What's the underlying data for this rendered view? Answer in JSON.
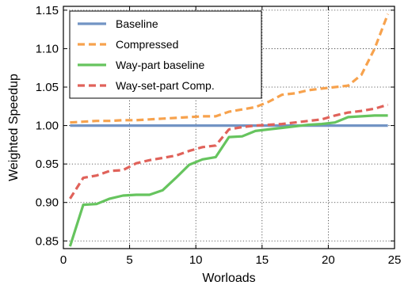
{
  "chart_data": {
    "type": "line",
    "xlabel": "Worloads",
    "ylabel": "Weighted Speedup",
    "xlim": [
      0,
      25
    ],
    "ylim": [
      0.84,
      1.155
    ],
    "xticks": [
      "0",
      "5",
      "10",
      "15",
      "20",
      "25"
    ],
    "yticks": [
      "0.85",
      "0.90",
      "0.95",
      "1.00",
      "1.05",
      "1.10",
      "1.15"
    ],
    "grid": true,
    "legend_position": "top-left",
    "series": [
      {
        "name": "Baseline",
        "color": "#7294c4",
        "style": "solid",
        "x": [
          0.5,
          24.5
        ],
        "y": [
          1.0,
          1.0
        ]
      },
      {
        "name": "Compressed",
        "color": "#f7a24d",
        "style": "dashed",
        "x": [
          0.5,
          1.5,
          2.5,
          3.5,
          4.5,
          5.5,
          6.5,
          7.5,
          8.5,
          9.5,
          10.5,
          11.5,
          12.5,
          13.5,
          14.5,
          15.5,
          16.5,
          17.5,
          18.5,
          19.5,
          20.5,
          21.5,
          22.5,
          23.5,
          24.5
        ],
        "y": [
          1.004,
          1.005,
          1.006,
          1.006,
          1.007,
          1.007,
          1.008,
          1.009,
          1.01,
          1.011,
          1.012,
          1.012,
          1.018,
          1.021,
          1.024,
          1.031,
          1.04,
          1.042,
          1.046,
          1.048,
          1.05,
          1.052,
          1.066,
          1.1,
          1.145
        ]
      },
      {
        "name": "Way-part baseline",
        "color": "#66c45e",
        "style": "solid",
        "x": [
          0.5,
          1.5,
          2.5,
          3.5,
          4.5,
          5.5,
          6.5,
          7.5,
          8.5,
          9.5,
          10.5,
          11.5,
          12.5,
          13.5,
          14.5,
          15.5,
          16.5,
          17.5,
          18.5,
          19.5,
          20.5,
          21.5,
          22.5,
          23.5,
          24.5
        ],
        "y": [
          0.843,
          0.897,
          0.898,
          0.905,
          0.909,
          0.91,
          0.91,
          0.916,
          0.932,
          0.949,
          0.956,
          0.959,
          0.985,
          0.986,
          0.993,
          0.995,
          0.997,
          0.999,
          1.001,
          1.002,
          1.004,
          1.011,
          1.012,
          1.013,
          1.013
        ]
      },
      {
        "name": "Way-set-part Comp.",
        "color": "#e0625a",
        "style": "dashed",
        "x": [
          0.5,
          1.5,
          2.5,
          3.5,
          4.5,
          5.5,
          6.5,
          7.5,
          8.5,
          9.5,
          10.5,
          11.5,
          12.5,
          13.5,
          14.5,
          15.5,
          16.5,
          17.5,
          18.5,
          19.5,
          20.5,
          21.5,
          22.5,
          23.5,
          24.5
        ],
        "y": [
          0.905,
          0.932,
          0.935,
          0.941,
          0.942,
          0.951,
          0.955,
          0.958,
          0.961,
          0.967,
          0.972,
          0.974,
          0.995,
          0.998,
          1.0,
          1.001,
          1.002,
          1.004,
          1.006,
          1.008,
          1.013,
          1.017,
          1.019,
          1.022,
          1.027
        ]
      }
    ]
  }
}
